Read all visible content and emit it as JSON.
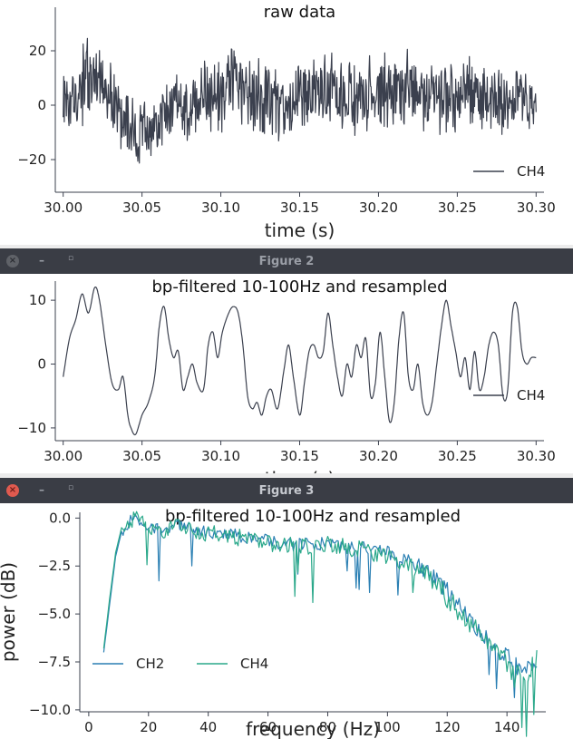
{
  "windows": [
    {
      "title": "",
      "active": false
    },
    {
      "title": "Figure 2",
      "active": false
    },
    {
      "title": "Figure 3",
      "active": true
    }
  ],
  "titlebar_icons": {
    "close": "×",
    "minimize": "–",
    "maximize": "▫"
  },
  "chart_data": [
    {
      "type": "line",
      "title": "raw data",
      "xlabel": "time (s)",
      "ylabel": "",
      "xlim": [
        29.995,
        30.305
      ],
      "ylim": [
        -32,
        36
      ],
      "xticks": [
        30.0,
        30.05,
        30.1,
        30.15,
        30.2,
        30.25,
        30.3
      ],
      "xtick_labels": [
        "30.00",
        "30.05",
        "30.10",
        "30.15",
        "30.20",
        "30.25",
        "30.30"
      ],
      "yticks": [
        20,
        0,
        -20
      ],
      "ytick_labels": [
        "20",
        "0",
        "−20"
      ],
      "legend_position": "lower-right",
      "series": [
        {
          "name": "CH4",
          "color": "#3b404e",
          "x_start": 30.0,
          "x_end": 30.3,
          "envelope_x": [
            30.0,
            30.01,
            30.015,
            30.02,
            30.03,
            30.04,
            30.05,
            30.06,
            30.07,
            30.08,
            30.09,
            30.1,
            30.11,
            30.12,
            30.13,
            30.14,
            30.15,
            30.16,
            30.17,
            30.18,
            30.19,
            30.2,
            30.21,
            30.22,
            30.23,
            30.24,
            30.25,
            30.26,
            30.27,
            30.28,
            30.29,
            30.3
          ],
          "envelope_center": [
            3,
            5,
            10,
            12,
            5,
            -8,
            -12,
            -8,
            0,
            -3,
            5,
            3,
            8,
            4,
            2,
            -2,
            3,
            5,
            7,
            2,
            0,
            6,
            3,
            5,
            2,
            4,
            2,
            4,
            1,
            0,
            2,
            0
          ],
          "envelope_amp": [
            12,
            14,
            18,
            16,
            14,
            15,
            14,
            13,
            14,
            13,
            15,
            16,
            17,
            16,
            15,
            15,
            16,
            16,
            17,
            16,
            16,
            17,
            16,
            16,
            15,
            15,
            16,
            15,
            14,
            13,
            13,
            12
          ]
        }
      ]
    },
    {
      "type": "line",
      "title": "bp-filtered 10-100Hz and resampled",
      "xlabel": "time (s)",
      "ylabel": "",
      "xlim": [
        29.995,
        30.305
      ],
      "ylim": [
        -12,
        13
      ],
      "xticks": [
        30.0,
        30.05,
        30.1,
        30.15,
        30.2,
        30.25,
        30.3
      ],
      "xtick_labels": [
        "30.00",
        "30.05",
        "30.10",
        "30.15",
        "30.20",
        "30.25",
        "30.30"
      ],
      "yticks": [
        10,
        0,
        -10
      ],
      "ytick_labels": [
        "10",
        "0",
        "−10"
      ],
      "legend_position": "lower-right",
      "series": [
        {
          "name": "CH4",
          "color": "#3b404e",
          "x": [
            30.0,
            30.004,
            30.008,
            30.012,
            30.016,
            30.02,
            30.023,
            30.027,
            30.031,
            30.035,
            30.038,
            30.041,
            30.043,
            30.046,
            30.05,
            30.054,
            30.058,
            30.061,
            30.064,
            30.067,
            30.07,
            30.073,
            30.076,
            30.079,
            30.082,
            30.085,
            30.089,
            30.092,
            30.095,
            30.098,
            30.101,
            30.105,
            30.108,
            30.111,
            30.114,
            30.117,
            30.12,
            30.123,
            30.126,
            30.129,
            30.132,
            30.136,
            30.14,
            30.143,
            30.146,
            30.15,
            30.153,
            30.156,
            30.159,
            30.162,
            30.165,
            30.168,
            30.171,
            30.174,
            30.177,
            30.18,
            30.183,
            30.186,
            30.189,
            30.192,
            30.195,
            30.198,
            30.201,
            30.204,
            30.207,
            30.21,
            30.213,
            30.216,
            30.219,
            30.222,
            30.225,
            30.228,
            30.231,
            30.234,
            30.237,
            30.24,
            30.243,
            30.246,
            30.249,
            30.252,
            30.255,
            30.258,
            30.261,
            30.264,
            30.267,
            30.27,
            30.273,
            30.276,
            30.279,
            30.282,
            30.285,
            30.288,
            30.291,
            30.294,
            30.297,
            30.3
          ],
          "y": [
            -2,
            4,
            7,
            11,
            8,
            12,
            10,
            3,
            -3,
            -4,
            -2,
            -8,
            -10,
            -11,
            -8,
            -6,
            -2,
            6,
            9,
            4,
            1,
            2,
            -4,
            -2,
            0,
            -3,
            -4,
            3,
            5,
            1,
            5,
            8,
            9,
            8,
            3,
            -5,
            -7,
            -6,
            -8,
            -5,
            -4,
            -7,
            -1,
            3,
            -2,
            -8,
            -3,
            2,
            3,
            1,
            2,
            8,
            3,
            -2,
            -5,
            0,
            -2,
            3,
            1,
            4,
            -5,
            -3,
            5,
            -2,
            -9,
            -6,
            4,
            8,
            -2,
            -4,
            0,
            -6,
            -8,
            -6,
            0,
            6,
            10,
            6,
            2,
            -2,
            1,
            -4,
            2,
            -4,
            -2,
            3,
            5,
            3,
            -5,
            -4,
            8,
            9,
            2,
            0,
            1,
            1
          ]
        }
      ]
    },
    {
      "type": "line",
      "title": "bp-filtered 10-100Hz and resampled",
      "xlabel": "frequency (Hz)",
      "ylabel": "power (dB)",
      "xlim": [
        -3,
        153
      ],
      "ylim": [
        -10.1,
        0.3
      ],
      "xticks": [
        0,
        20,
        40,
        60,
        80,
        100,
        120,
        140
      ],
      "xtick_labels": [
        "0",
        "20",
        "40",
        "60",
        "80",
        "100",
        "120",
        "140"
      ],
      "yticks": [
        0.0,
        -2.5,
        -5.0,
        -7.5,
        -10.0
      ],
      "ytick_labels": [
        "0.0",
        "−2.5",
        "−5.0",
        "−7.5",
        "−10.0"
      ],
      "legend_position": "lower-left",
      "series": [
        {
          "name": "CH2",
          "color": "#2a7fb3",
          "x": [
            5,
            7,
            9,
            11,
            13,
            15,
            20,
            25,
            30,
            40,
            50,
            60,
            70,
            80,
            90,
            100,
            105,
            110,
            115,
            120,
            125,
            130,
            135,
            140,
            145,
            150
          ],
          "y": [
            -7.0,
            -4.5,
            -2.0,
            -0.7,
            -0.3,
            0.1,
            -0.5,
            -0.6,
            -0.4,
            -0.7,
            -0.9,
            -1.2,
            -1.4,
            -1.3,
            -1.5,
            -1.8,
            -2.1,
            -2.5,
            -3.0,
            -3.8,
            -4.8,
            -5.8,
            -6.6,
            -7.2,
            -8.0,
            -7.5
          ],
          "noise": 0.35
        },
        {
          "name": "CH4",
          "color": "#2aa88a",
          "x": [
            5,
            7,
            9,
            11,
            13,
            15,
            20,
            25,
            30,
            40,
            50,
            60,
            70,
            80,
            90,
            100,
            105,
            110,
            115,
            120,
            125,
            130,
            135,
            140,
            145,
            150
          ],
          "y": [
            -6.8,
            -4.2,
            -1.8,
            -0.5,
            -0.2,
            0.0,
            -0.4,
            -0.6,
            -0.5,
            -0.8,
            -1.0,
            -1.3,
            -1.5,
            -1.4,
            -1.6,
            -2.0,
            -2.3,
            -2.7,
            -3.3,
            -4.1,
            -5.0,
            -6.0,
            -6.8,
            -7.6,
            -8.4,
            -7.3
          ],
          "noise": 0.45
        }
      ]
    }
  ]
}
